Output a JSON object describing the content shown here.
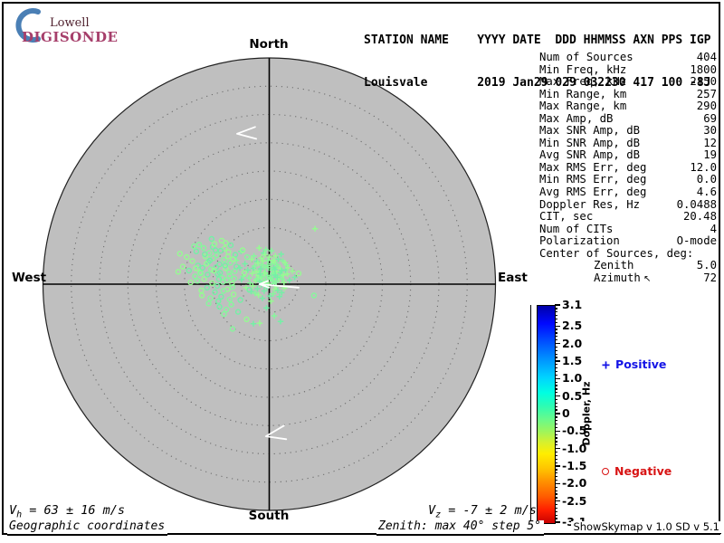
{
  "logo": {
    "top": "Lowell",
    "bottom": "DIGISONDE",
    "crescent_color": "#4a7fb5"
  },
  "header": {
    "line1": "STATION NAME    YYYY DATE  DDD HHMMSS AXN PPS IGP",
    "line2": "Louisvale       2019 Jan29 029 032230 417 100 -8J"
  },
  "compass": {
    "north": "North",
    "south": "South",
    "east": "East",
    "west": "West"
  },
  "stats": {
    "rows": [
      {
        "label": "Num of Sources",
        "value": "404"
      },
      {
        "label": "Min Freq, kHz",
        "value": "1800"
      },
      {
        "label": "Max Freq, kHz",
        "value": "2150"
      },
      {
        "label": "Min Range, km",
        "value": "257"
      },
      {
        "label": "Max Range, km",
        "value": "290"
      },
      {
        "label": "Max Amp, dB",
        "value": "69"
      },
      {
        "label": "Max SNR Amp, dB",
        "value": "30"
      },
      {
        "label": "Min SNR Amp, dB",
        "value": "12"
      },
      {
        "label": "Avg SNR Amp, dB",
        "value": "19"
      },
      {
        "label": "Max RMS Err, deg",
        "value": "12.0"
      },
      {
        "label": "Min RMS Err, deg",
        "value": "0.0"
      },
      {
        "label": "Avg RMS Err, deg",
        "value": "4.6"
      },
      {
        "label": "Doppler Res, Hz",
        "value": "0.0488"
      },
      {
        "label": "CIT, sec",
        "value": "20.48"
      },
      {
        "label": "Num of CITs",
        "value": "4"
      },
      {
        "label": "Polarization",
        "value": "O-mode"
      },
      {
        "label": "Center of Sources, deg:",
        "value": ""
      },
      {
        "label": "Zenith",
        "value": "5.0",
        "indent": true
      },
      {
        "label": "Azimuth",
        "value": "72",
        "indent": true,
        "arrow": "↖"
      }
    ]
  },
  "colorbar": {
    "title": "Doppler, Hz",
    "tick_labels": [
      "3.1",
      "2.5",
      "2.0",
      "1.5",
      "1.0",
      "0.5",
      "0",
      "-0.5",
      "-1.0",
      "-1.5",
      "-2.0",
      "-2.5",
      "-3.1"
    ],
    "max": 3.1,
    "min": -3.1,
    "minor_step": 0.1,
    "positive_label": "Positive",
    "negative_label": "Negative",
    "positive_color": "#1414e6",
    "negative_color": "#d81414"
  },
  "footer": {
    "vh_symbol": "V",
    "vh_sub": "h",
    "vh_value": " = 63 ± 16 m/s",
    "vz_symbol": "V",
    "vz_sub": "z",
    "vz_value": " = -7 ± 2 m/s",
    "coords": "Geographic coordinates",
    "zenith_note": "Zenith: max 40°  step 5°",
    "version": "ShowSkymap v 1.0  SD v 5.1"
  },
  "colors": {
    "plot_fill": "#bfbfbf",
    "ring_dots": "#6f6f6f",
    "marker_palette": [
      "#86f79c",
      "#74f0a6",
      "#96fb92"
    ],
    "arrow_color": "#ffffff"
  },
  "chart_data": {
    "type": "scatter",
    "projection": "polar-skymap (zenith/azimuth), North up, East right",
    "zenith_max_deg": 40,
    "zenith_ring_step_deg": 5,
    "num_sources_reported": 404,
    "doppler_scale_hz": {
      "min": -3.1,
      "max": 3.1
    },
    "positive_points_deg": [
      [
        -0.5,
        0.2
      ],
      [
        0.3,
        1.1
      ],
      [
        1.2,
        -0.4
      ],
      [
        -1.8,
        2.3
      ],
      [
        0.8,
        2.9
      ],
      [
        -2.4,
        0.6
      ],
      [
        1.9,
        1.4
      ],
      [
        -0.9,
        -1.2
      ],
      [
        2.6,
        0.3
      ],
      [
        -1.3,
        3.4
      ],
      [
        0.1,
        -2.1
      ],
      [
        -3.0,
        1.9
      ],
      [
        1.5,
        3.1
      ],
      [
        -2.1,
        -0.8
      ],
      [
        3.2,
        1.8
      ],
      [
        -0.2,
        4.2
      ],
      [
        2.2,
        -1.5
      ],
      [
        -1.6,
        1.0
      ],
      [
        0.6,
        0.6
      ],
      [
        -2.8,
        2.8
      ],
      [
        1.0,
        -0.9
      ],
      [
        -0.7,
        2.0
      ],
      [
        2.9,
        2.5
      ],
      [
        -1.1,
        0.1
      ],
      [
        0.4,
        3.6
      ],
      [
        -2.2,
        4.0
      ],
      [
        1.7,
        0.9
      ],
      [
        -3.4,
        0.2
      ],
      [
        0.9,
        1.7
      ],
      [
        -1.9,
        -1.9
      ],
      [
        2.4,
        4.1
      ],
      [
        -0.4,
        -0.6
      ],
      [
        1.3,
        2.2
      ],
      [
        -2.6,
        3.2
      ],
      [
        3.6,
        0.7
      ],
      [
        -1.4,
        4.6
      ],
      [
        0.2,
        0.9
      ],
      [
        -3.2,
        -1.3
      ],
      [
        1.1,
        5.0
      ],
      [
        -0.8,
        3.0
      ],
      [
        2.0,
        2.0
      ],
      [
        -2.0,
        1.5
      ],
      [
        0.7,
        -1.7
      ],
      [
        -1.0,
        5.5
      ],
      [
        4.1,
        2.3
      ],
      [
        -0.3,
        1.5
      ],
      [
        1.6,
        4.4
      ],
      [
        -2.9,
        -0.3
      ],
      [
        0.5,
        2.5
      ],
      [
        -1.7,
        0.5
      ],
      [
        2.7,
        -0.7
      ],
      [
        -0.6,
        6.1
      ],
      [
        1.4,
        1.2
      ],
      [
        -2.3,
        2.2
      ],
      [
        3.0,
        3.4
      ],
      [
        -1.2,
        -2.5
      ],
      [
        0.0,
        4.8
      ],
      [
        -3.6,
        1.1
      ],
      [
        1.8,
        -2.2
      ],
      [
        -0.1,
        0.0
      ],
      [
        2.3,
        0.9
      ],
      [
        -1.5,
        2.7
      ],
      [
        0.9,
        3.9
      ],
      [
        -2.7,
        5.0
      ],
      [
        4.5,
        1.2
      ],
      [
        -0.9,
        1.9
      ],
      [
        1.2,
        0.4
      ],
      [
        -3.8,
        2.5
      ],
      [
        0.3,
        -3.0
      ],
      [
        -2.5,
        -1.6
      ],
      [
        2.1,
        5.3
      ],
      [
        -1.1,
        4.1
      ],
      [
        0.8,
        0.1
      ],
      [
        -0.5,
        -4.2
      ],
      [
        3.3,
        2.9
      ],
      [
        -2.2,
        0.9
      ],
      [
        1.0,
        2.6
      ],
      [
        -1.8,
        6.4
      ],
      [
        0.6,
        1.9
      ],
      [
        -4.3,
        3.6
      ],
      [
        2.5,
        1.6
      ],
      [
        -0.2,
        2.9
      ],
      [
        1.5,
        -1.1
      ],
      [
        -3.1,
        4.4
      ],
      [
        0.1,
        1.2
      ],
      [
        -1.4,
        -0.1
      ],
      [
        2.8,
        3.8
      ],
      [
        -0.7,
        0.7
      ],
      [
        1.1,
        1.6
      ],
      [
        -2.0,
        3.7
      ],
      [
        0.4,
        5.9
      ],
      [
        -1.6,
        1.8
      ],
      [
        1.9,
        2.8
      ],
      [
        -0.3,
        3.3
      ],
      [
        -5.0,
        5.8
      ],
      [
        0.7,
        4.2
      ],
      [
        -1.3,
        1.3
      ],
      [
        2.2,
        2.4
      ],
      [
        -0.8,
        5.2
      ],
      [
        1.3,
        3.5
      ],
      [
        -2.8,
        -7.0
      ],
      [
        -1.7,
        -6.9
      ],
      [
        0.9,
        -5.6
      ],
      [
        2.0,
        -6.6
      ],
      [
        8.1,
        9.8
      ],
      [
        -4.6,
        1.4
      ],
      [
        -5.2,
        2.9
      ],
      [
        -4.1,
        -0.6
      ],
      [
        -5.8,
        4.2
      ],
      [
        -4.9,
        0.8
      ]
    ],
    "negative_points_deg": [
      [
        -8.2,
        0.4
      ],
      [
        -9.1,
        1.8
      ],
      [
        -7.4,
        -0.9
      ],
      [
        -10.3,
        2.6
      ],
      [
        -8.8,
        3.5
      ],
      [
        -11.5,
        0.9
      ],
      [
        -7.0,
        1.5
      ],
      [
        -9.6,
        -1.4
      ],
      [
        -12.2,
        2.1
      ],
      [
        -8.0,
        4.3
      ],
      [
        -10.8,
        3.9
      ],
      [
        -6.6,
        0.1
      ],
      [
        -9.3,
        5.1
      ],
      [
        -11.0,
        -0.6
      ],
      [
        -7.7,
        2.8
      ],
      [
        -13.1,
        1.4
      ],
      [
        -8.5,
        -2.2
      ],
      [
        -10.1,
        0.2
      ],
      [
        -6.9,
        3.8
      ],
      [
        -12.6,
        3.3
      ],
      [
        -7.2,
        5.7
      ],
      [
        -9.9,
        4.6
      ],
      [
        -11.8,
        2.9
      ],
      [
        -6.3,
        -1.8
      ],
      [
        -8.3,
        1.1
      ],
      [
        -14.2,
        2.4
      ],
      [
        -7.9,
        6.3
      ],
      [
        -10.6,
        5.5
      ],
      [
        -9.0,
        -3.0
      ],
      [
        -12.0,
        -1.1
      ],
      [
        -6.1,
        2.3
      ],
      [
        -8.7,
        2.0
      ],
      [
        -13.6,
        4.1
      ],
      [
        -7.5,
        0.7
      ],
      [
        -10.0,
        6.6
      ],
      [
        -11.3,
        4.9
      ],
      [
        -6.7,
        -3.6
      ],
      [
        -9.4,
        3.0
      ],
      [
        -15.3,
        3.1
      ],
      [
        -8.1,
        -1.2
      ],
      [
        -12.9,
        5.8
      ],
      [
        -7.3,
        4.9
      ],
      [
        -10.4,
        -2.5
      ],
      [
        -6.0,
        5.2
      ],
      [
        -9.7,
        7.1
      ],
      [
        -11.6,
        6.4
      ],
      [
        -8.6,
        5.9
      ],
      [
        -13.9,
        0.3
      ],
      [
        -7.6,
        -4.5
      ],
      [
        -10.9,
        1.7
      ],
      [
        -6.4,
        4.4
      ],
      [
        -12.4,
        7.0
      ],
      [
        -8.9,
        0.9
      ],
      [
        -15.8,
        5.4
      ],
      [
        -7.1,
        2.1
      ],
      [
        -9.2,
        -0.3
      ],
      [
        -11.1,
        3.6
      ],
      [
        -6.2,
        1.0
      ],
      [
        -10.5,
        4.2
      ],
      [
        -8.4,
        7.7
      ],
      [
        -13.3,
        6.7
      ],
      [
        -7.8,
        3.3
      ],
      [
        -9.8,
        2.4
      ],
      [
        -12.7,
        0.6
      ],
      [
        -6.8,
        6.9
      ],
      [
        -11.9,
        -2.0
      ],
      [
        -8.0,
        -5.3
      ],
      [
        -10.2,
        8.0
      ],
      [
        -14.6,
        4.8
      ],
      [
        -6.5,
        -0.5
      ],
      [
        -9.5,
        6.0
      ],
      [
        -7.7,
        7.3
      ],
      [
        -12.1,
        1.9
      ],
      [
        -8.8,
        -4.0
      ],
      [
        -16.1,
        2.2
      ],
      [
        -10.7,
        -3.4
      ],
      [
        -5.8,
        3.1
      ],
      [
        -13.0,
        2.8
      ],
      [
        -7.0,
        -2.7
      ],
      [
        -11.4,
        5.3
      ],
      [
        -4.0,
        -6.2
      ],
      [
        -6.5,
        -7.9
      ],
      [
        -5.5,
        -4.9
      ],
      [
        5.2,
        1.9
      ],
      [
        7.9,
        -2.0
      ],
      [
        -3.5,
        -1.0
      ],
      [
        -4.4,
        2.0
      ],
      [
        -3.9,
        4.8
      ],
      [
        -5.1,
        -2.8
      ],
      [
        -4.7,
        6.0
      ]
    ],
    "arrows_deg": [
      {
        "points": [
          [
            -2.5,
            27.8
          ],
          [
            -5.7,
            26.6
          ],
          [
            -2.3,
            25.7
          ]
        ]
      },
      {
        "points": [
          [
            2.6,
            -25.0
          ],
          [
            -0.6,
            -26.9
          ],
          [
            3.0,
            -27.4
          ]
        ]
      },
      {
        "points": [
          [
            5.2,
            -0.6
          ],
          [
            -1.7,
            0.0
          ]
        ]
      },
      {
        "points": [
          [
            -0.2,
            0.6
          ],
          [
            -1.7,
            0.0
          ],
          [
            -0.1,
            -0.6
          ]
        ]
      }
    ]
  }
}
